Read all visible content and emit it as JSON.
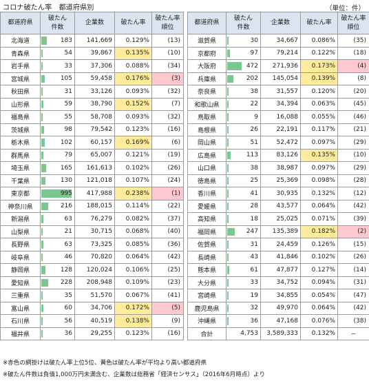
{
  "title": "コロナ破たん率　都道府県別",
  "unit": "（単位：件）",
  "headers": {
    "pref": "都道府県",
    "count_line1": "破たん",
    "count_line2": "件数",
    "companies": "企業数",
    "rate": "破たん率",
    "rank_line1": "破たん率",
    "rank_line2": "順位"
  },
  "colors": {
    "top5_rank": "#ffc7ce",
    "above_avg": "#ffeb9c",
    "databar": "#63be7b",
    "header": "#dbe5f1"
  },
  "bar_max": 995,
  "left_rows": [
    {
      "pref": "北海道",
      "count": 183,
      "count_text": "183",
      "companies": "141,669",
      "rate": "0.129%",
      "rank": "(13)",
      "hl": ""
    },
    {
      "pref": "青森県",
      "count": 54,
      "count_text": "54",
      "companies": "39,867",
      "rate": "0.135%",
      "rank": "(10)",
      "hl": "y"
    },
    {
      "pref": "岩手県",
      "count": 33,
      "count_text": "33",
      "companies": "37,306",
      "rate": "0.088%",
      "rank": "(34)",
      "hl": ""
    },
    {
      "pref": "宮城県",
      "count": 105,
      "count_text": "105",
      "companies": "59,458",
      "rate": "0.176%",
      "rank": "(3)",
      "hl": "r"
    },
    {
      "pref": "秋田県",
      "count": 31,
      "count_text": "31",
      "companies": "33,126",
      "rate": "0.093%",
      "rank": "(32)",
      "hl": ""
    },
    {
      "pref": "山形県",
      "count": 59,
      "count_text": "59",
      "companies": "38,790",
      "rate": "0.152%",
      "rank": "(7)",
      "hl": "y"
    },
    {
      "pref": "福島県",
      "count": 55,
      "count_text": "55",
      "companies": "58,708",
      "rate": "0.093%",
      "rank": "(32)",
      "hl": ""
    },
    {
      "pref": "茨城県",
      "count": 98,
      "count_text": "98",
      "companies": "79,542",
      "rate": "0.123%",
      "rank": "(16)",
      "hl": ""
    },
    {
      "pref": "栃木県",
      "count": 102,
      "count_text": "102",
      "companies": "60,157",
      "rate": "0.169%",
      "rank": "(6)",
      "hl": "y"
    },
    {
      "pref": "群馬県",
      "count": 79,
      "count_text": "79",
      "companies": "65,007",
      "rate": "0.121%",
      "rank": "(19)",
      "hl": ""
    },
    {
      "pref": "埼玉県",
      "count": 165,
      "count_text": "165",
      "companies": "161,613",
      "rate": "0.102%",
      "rank": "(26)",
      "hl": ""
    },
    {
      "pref": "千葉県",
      "count": 130,
      "count_text": "130",
      "companies": "121,018",
      "rate": "0.107%",
      "rank": "(24)",
      "hl": ""
    },
    {
      "pref": "東京都",
      "count": 995,
      "count_text": "995",
      "companies": "417,988",
      "rate": "0.238%",
      "rank": "(1)",
      "hl": "r"
    },
    {
      "pref": "神奈川県",
      "count": 216,
      "count_text": "216",
      "companies": "188,015",
      "rate": "0.114%",
      "rank": "(22)",
      "hl": ""
    },
    {
      "pref": "新潟県",
      "count": 63,
      "count_text": "63",
      "companies": "76,279",
      "rate": "0.082%",
      "rank": "(37)",
      "hl": ""
    },
    {
      "pref": "山梨県",
      "count": 21,
      "count_text": "21",
      "companies": "30,715",
      "rate": "0.068%",
      "rank": "(40)",
      "hl": ""
    },
    {
      "pref": "長野県",
      "count": 63,
      "count_text": "63",
      "companies": "73,325",
      "rate": "0.085%",
      "rank": "(36)",
      "hl": ""
    },
    {
      "pref": "岐阜県",
      "count": 46,
      "count_text": "46",
      "companies": "70,820",
      "rate": "0.064%",
      "rank": "(42)",
      "hl": ""
    },
    {
      "pref": "静岡県",
      "count": 128,
      "count_text": "128",
      "companies": "120,024",
      "rate": "0.106%",
      "rank": "(25)",
      "hl": ""
    },
    {
      "pref": "愛知県",
      "count": 228,
      "count_text": "228",
      "companies": "208,948",
      "rate": "0.109%",
      "rank": "(23)",
      "hl": ""
    },
    {
      "pref": "三重県",
      "count": 35,
      "count_text": "35",
      "companies": "51,570",
      "rate": "0.067%",
      "rank": "(41)",
      "hl": ""
    },
    {
      "pref": "富山県",
      "count": 60,
      "count_text": "60",
      "companies": "34,706",
      "rate": "0.172%",
      "rank": "(5)",
      "hl": "r"
    },
    {
      "pref": "石川県",
      "count": 56,
      "count_text": "56",
      "companies": "40,519",
      "rate": "0.138%",
      "rank": "(9)",
      "hl": "y"
    },
    {
      "pref": "福井県",
      "count": 36,
      "count_text": "36",
      "companies": "29,255",
      "rate": "0.123%",
      "rank": "(16)",
      "hl": ""
    }
  ],
  "right_rows": [
    {
      "pref": "滋賀県",
      "count": 30,
      "count_text": "30",
      "companies": "34,667",
      "rate": "0.086%",
      "rank": "(35)",
      "hl": ""
    },
    {
      "pref": "京都府",
      "count": 97,
      "count_text": "97",
      "companies": "79,214",
      "rate": "0.122%",
      "rank": "(18)",
      "hl": ""
    },
    {
      "pref": "大阪府",
      "count": 472,
      "count_text": "472",
      "companies": "271,936",
      "rate": "0.173%",
      "rank": "(4)",
      "hl": "r"
    },
    {
      "pref": "兵庫県",
      "count": 202,
      "count_text": "202",
      "companies": "145,054",
      "rate": "0.139%",
      "rank": "(8)",
      "hl": "y"
    },
    {
      "pref": "奈良県",
      "count": 38,
      "count_text": "38",
      "companies": "31,557",
      "rate": "0.120%",
      "rank": "(20)",
      "hl": ""
    },
    {
      "pref": "和歌山県",
      "count": 22,
      "count_text": "22",
      "companies": "34,394",
      "rate": "0.063%",
      "rank": "(45)",
      "hl": ""
    },
    {
      "pref": "鳥取県",
      "count": 9,
      "count_text": "9",
      "companies": "16,088",
      "rate": "0.055%",
      "rank": "(46)",
      "hl": ""
    },
    {
      "pref": "島根県",
      "count": 26,
      "count_text": "26",
      "companies": "22,191",
      "rate": "0.117%",
      "rank": "(21)",
      "hl": ""
    },
    {
      "pref": "岡山県",
      "count": 51,
      "count_text": "51",
      "companies": "52,472",
      "rate": "0.097%",
      "rank": "(29)",
      "hl": ""
    },
    {
      "pref": "広島県",
      "count": 113,
      "count_text": "113",
      "companies": "83,126",
      "rate": "0.135%",
      "rank": "(10)",
      "hl": "y"
    },
    {
      "pref": "山口県",
      "count": 38,
      "count_text": "38",
      "companies": "38,987",
      "rate": "0.097%",
      "rank": "(29)",
      "hl": ""
    },
    {
      "pref": "徳島県",
      "count": 25,
      "count_text": "25",
      "companies": "25,369",
      "rate": "0.098%",
      "rank": "(28)",
      "hl": ""
    },
    {
      "pref": "香川県",
      "count": 41,
      "count_text": "41",
      "companies": "30,935",
      "rate": "0.132%",
      "rank": "(12)",
      "hl": ""
    },
    {
      "pref": "愛媛県",
      "count": 28,
      "count_text": "28",
      "companies": "43,577",
      "rate": "0.064%",
      "rank": "(42)",
      "hl": ""
    },
    {
      "pref": "高知県",
      "count": 18,
      "count_text": "18",
      "companies": "25,025",
      "rate": "0.071%",
      "rank": "(39)",
      "hl": ""
    },
    {
      "pref": "福岡県",
      "count": 247,
      "count_text": "247",
      "companies": "135,389",
      "rate": "0.182%",
      "rank": "(2)",
      "hl": "r"
    },
    {
      "pref": "佐賀県",
      "count": 31,
      "count_text": "31",
      "companies": "24,459",
      "rate": "0.126%",
      "rank": "(15)",
      "hl": ""
    },
    {
      "pref": "長崎県",
      "count": 43,
      "count_text": "43",
      "companies": "41,846",
      "rate": "0.102%",
      "rank": "(26)",
      "hl": ""
    },
    {
      "pref": "熊本県",
      "count": 61,
      "count_text": "61",
      "companies": "47,877",
      "rate": "0.127%",
      "rank": "(14)",
      "hl": ""
    },
    {
      "pref": "大分県",
      "count": 33,
      "count_text": "33",
      "companies": "34,752",
      "rate": "0.094%",
      "rank": "(31)",
      "hl": ""
    },
    {
      "pref": "宮崎県",
      "count": 19,
      "count_text": "19",
      "companies": "34,855",
      "rate": "0.054%",
      "rank": "(47)",
      "hl": ""
    },
    {
      "pref": "鹿児島県",
      "count": 32,
      "count_text": "32",
      "companies": "49,970",
      "rate": "0.064%",
      "rank": "(42)",
      "hl": ""
    },
    {
      "pref": "沖縄県",
      "count": 36,
      "count_text": "36",
      "companies": "47,168",
      "rate": "0.076%",
      "rank": "(38)",
      "hl": ""
    }
  ],
  "total": {
    "label": "合計",
    "count": "4,753",
    "companies": "3,589,333",
    "rate": "0.132%",
    "rank": "－"
  },
  "notes": {
    "note1": "※赤色の網掛けは破たん率上位5位、黄色は破たん率が平均より高い都道府県",
    "note2": "※破たん件数は負債1,000万円未満含む、企業数は総務省「経済センサス」（2016年6月時点）より"
  }
}
